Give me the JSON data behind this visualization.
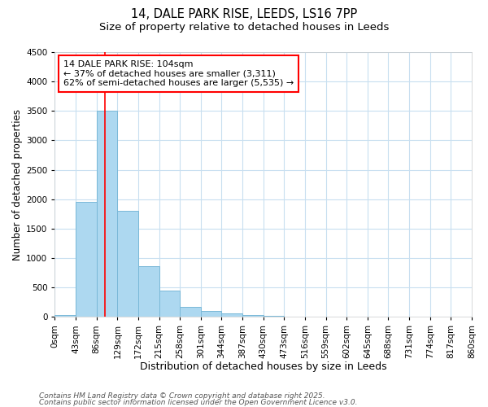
{
  "title_line1": "14, DALE PARK RISE, LEEDS, LS16 7PP",
  "title_line2": "Size of property relative to detached houses in Leeds",
  "xlabel": "Distribution of detached houses by size in Leeds",
  "ylabel": "Number of detached properties",
  "bin_edges": [
    0,
    43,
    86,
    129,
    172,
    215,
    258,
    301,
    344,
    387,
    430,
    473,
    516,
    559,
    602,
    645,
    688,
    731,
    774,
    817,
    860
  ],
  "bin_counts": [
    30,
    1950,
    3500,
    1800,
    860,
    450,
    170,
    100,
    55,
    35,
    10,
    2,
    0,
    0,
    0,
    0,
    0,
    0,
    0,
    0
  ],
  "bar_facecolor": "#add8f0",
  "bar_edgecolor": "#7ab8d8",
  "property_line_x": 104,
  "property_line_color": "red",
  "annotation_text": "14 DALE PARK RISE: 104sqm\n← 37% of detached houses are smaller (3,311)\n62% of semi-detached houses are larger (5,535) →",
  "annotation_box_edgecolor": "red",
  "annotation_box_facecolor": "#ffffff",
  "ylim": [
    0,
    4500
  ],
  "yticks": [
    0,
    500,
    1000,
    1500,
    2000,
    2500,
    3000,
    3500,
    4000,
    4500
  ],
  "xlim": [
    0,
    860
  ],
  "background_color": "#ffffff",
  "plot_bg_color": "#ffffff",
  "grid_color": "#c8dff0",
  "footer_line1": "Contains HM Land Registry data © Crown copyright and database right 2025.",
  "footer_line2": "Contains public sector information licensed under the Open Government Licence v3.0.",
  "title_fontsize": 10.5,
  "subtitle_fontsize": 9.5,
  "xlabel_fontsize": 9,
  "ylabel_fontsize": 8.5,
  "tick_fontsize": 7.5,
  "annotation_fontsize": 8,
  "footer_fontsize": 6.5
}
